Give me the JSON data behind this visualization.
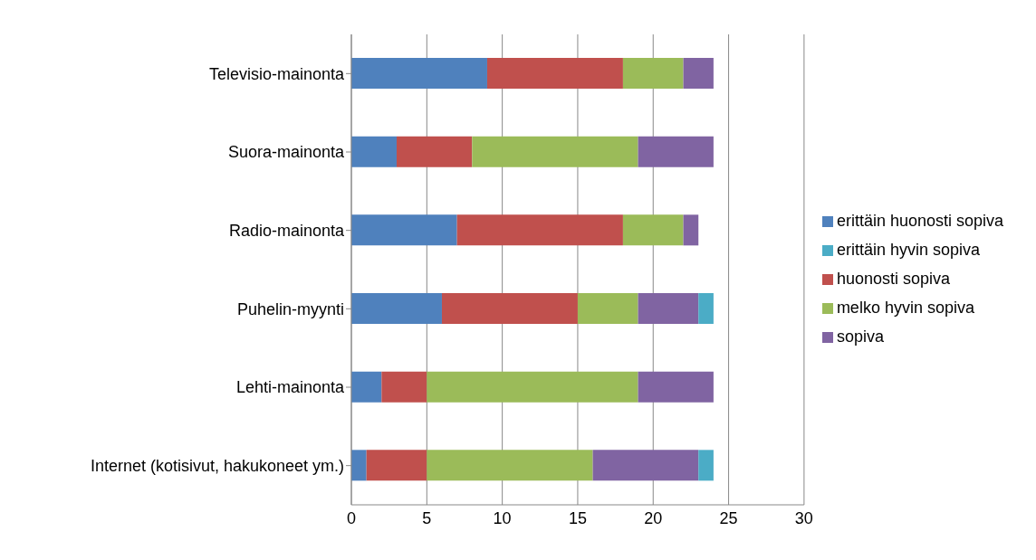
{
  "chart_data": {
    "type": "bar",
    "orientation": "horizontal",
    "stacked": true,
    "categories": [
      "Televisio-mainonta",
      "Suora-mainonta",
      "Radio-mainonta",
      "Puhelin-myynti",
      "Lehti-mainonta",
      "Internet (kotisivut, hakukoneet ym.)"
    ],
    "series": [
      {
        "name": "erittäin huonosti sopiva",
        "color": "#4f81bd",
        "values": [
          9,
          3,
          7,
          6,
          2,
          1
        ]
      },
      {
        "name": "huonosti sopiva",
        "color": "#c0504d",
        "values": [
          9,
          5,
          11,
          9,
          3,
          4
        ]
      },
      {
        "name": "melko hyvin sopiva",
        "color": "#9bbb59",
        "values": [
          4,
          11,
          4,
          4,
          14,
          11
        ]
      },
      {
        "name": "sopiva",
        "color": "#8064a2",
        "values": [
          2,
          5,
          1,
          4,
          5,
          7
        ]
      },
      {
        "name": "erittäin hyvin sopiva",
        "color": "#4bacc6",
        "values": [
          0,
          0,
          0,
          1,
          0,
          1
        ]
      }
    ],
    "xlim": [
      0,
      30
    ],
    "xticks": [
      0,
      5,
      10,
      15,
      20,
      25,
      30
    ],
    "grid": "x",
    "legend": "right"
  }
}
